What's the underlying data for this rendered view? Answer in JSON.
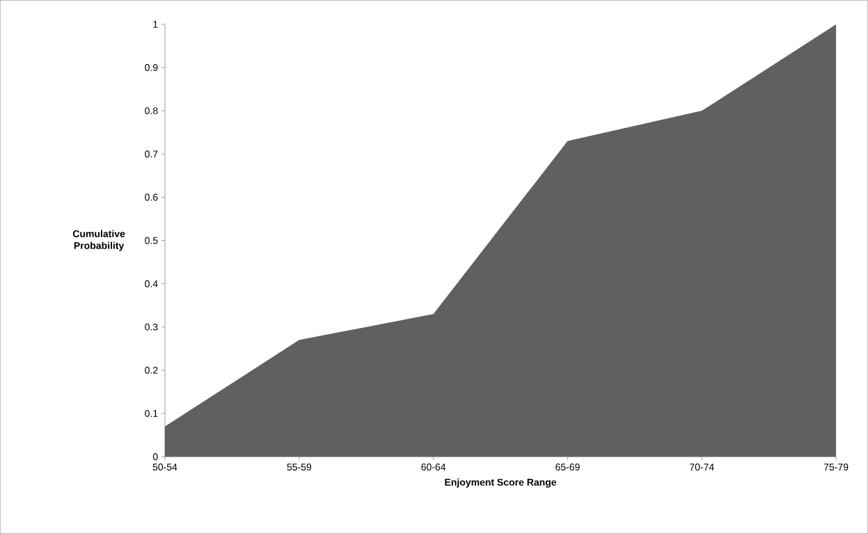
{
  "chart_data": {
    "type": "area",
    "xlabel": "Enjoyment Score Range",
    "ylabel": "Cumulative Probability",
    "categories": [
      "50-54",
      "55-59",
      "60-64",
      "65-69",
      "70-74",
      "75-79"
    ],
    "values": [
      0.07,
      0.27,
      0.33,
      0.73,
      0.8,
      1
    ],
    "color": "#606060",
    "ylim": [
      0,
      1
    ],
    "yticks": [
      0,
      0.1,
      0.2,
      0.3,
      0.4,
      0.5,
      0.6,
      0.7,
      0.8,
      0.9,
      1
    ],
    "grid": false
  }
}
